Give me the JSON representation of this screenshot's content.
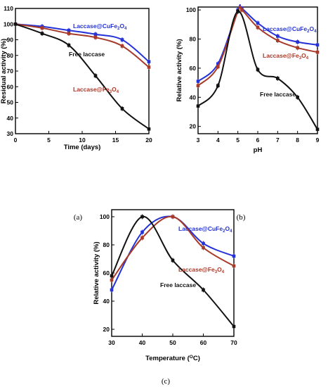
{
  "figure": {
    "panels": [
      "(a)",
      "(b)",
      "(c)"
    ]
  },
  "colors": {
    "free": "#111111",
    "fe3o4": "#a83a2a",
    "cufe2o4": "#2432d8"
  },
  "chart_data": [
    {
      "type": "line",
      "panel": "(a)",
      "xlabel": "Time (days)",
      "ylabel": "Residual activity (%)",
      "xlim": [
        0,
        20
      ],
      "ylim": [
        30,
        110
      ],
      "xticks": [
        0,
        5,
        10,
        15,
        20
      ],
      "yticks": [
        30,
        40,
        50,
        60,
        70,
        80,
        90,
        100,
        110
      ],
      "grid": false,
      "series": [
        {
          "name": "Laccase@CuFe2O4",
          "color_key": "cufe2o4",
          "x": [
            0,
            4,
            8,
            12,
            16,
            20
          ],
          "y": [
            100,
            98.5,
            96,
            93.5,
            90,
            76
          ]
        },
        {
          "name": "Laccase@Fe3O4",
          "color_key": "fe3o4",
          "x": [
            0,
            4,
            8,
            12,
            16,
            20
          ],
          "y": [
            100,
            97.5,
            94,
            91.5,
            86,
            72.5
          ]
        },
        {
          "name": "Free laccase",
          "color_key": "free",
          "x": [
            0,
            4,
            8,
            12,
            16,
            20
          ],
          "y": [
            100,
            94,
            86.5,
            67,
            46,
            33
          ]
        }
      ],
      "annotations": [
        {
          "text": "Laccase@CuFe",
          "sub": "2",
          "text2": "O",
          "sub2": "4",
          "series": "Laccase@CuFe2O4"
        },
        {
          "text": "Laccase@Fe",
          "sub": "3",
          "text2": "O",
          "sub2": "4",
          "series": "Laccase@Fe3O4"
        },
        {
          "text": "Free laccase",
          "series": "Free laccase"
        }
      ]
    },
    {
      "type": "line",
      "panel": "(b)",
      "xlabel": "pH",
      "ylabel": "Relative activity (%)",
      "xlim": [
        3,
        9
      ],
      "ylim": [
        15,
        102
      ],
      "xticks": [
        3,
        4,
        5,
        6,
        7,
        8,
        9
      ],
      "yticks": [
        20,
        40,
        60,
        80,
        100
      ],
      "grid": false,
      "series": [
        {
          "name": "Laccase@CuFe2O4",
          "color_key": "cufe2o4",
          "x": [
            3,
            4,
            5,
            5.2,
            6,
            7,
            8,
            9
          ],
          "y": [
            51,
            63,
            100,
            101,
            91,
            82,
            78,
            76
          ]
        },
        {
          "name": "Laccase@Fe3O4",
          "color_key": "fe3o4",
          "x": [
            3,
            4,
            5,
            5.2,
            6,
            7,
            8,
            9
          ],
          "y": [
            48,
            61,
            99,
            100,
            88,
            79,
            74,
            71
          ]
        },
        {
          "name": "Free laccase",
          "color_key": "free",
          "x": [
            3,
            4,
            5,
            6,
            7,
            8,
            9
          ],
          "y": [
            34,
            48,
            99,
            59,
            53,
            40,
            18
          ]
        }
      ],
      "annotations": [
        {
          "text": "Laccase@CuFe",
          "sub": "2",
          "text2": "O",
          "sub2": "4",
          "series": "Laccase@CuFe2O4"
        },
        {
          "text": "Laccase@Fe",
          "sub": "3",
          "text2": "O",
          "sub2": "4",
          "series": "Laccase@Fe3O4"
        },
        {
          "text": "Free laccase",
          "series": "Free laccase"
        }
      ]
    },
    {
      "type": "line",
      "panel": "(c)",
      "xlabel": "Temperature (",
      "xlabel_sup": "O",
      "xlabel_end": "C)",
      "ylabel": "Relative activity (%)",
      "xlim": [
        30,
        70
      ],
      "ylim": [
        15,
        105
      ],
      "xticks": [
        30,
        40,
        50,
        60,
        70
      ],
      "yticks": [
        20,
        40,
        60,
        80,
        100
      ],
      "grid": false,
      "series": [
        {
          "name": "Laccase@CuFe2O4",
          "color_key": "cufe2o4",
          "x": [
            30,
            40,
            50,
            60,
            70
          ],
          "y": [
            48,
            89,
            100,
            81,
            72
          ]
        },
        {
          "name": "Laccase@Fe3O4",
          "color_key": "fe3o4",
          "x": [
            30,
            40,
            50,
            60,
            70
          ],
          "y": [
            55,
            85,
            100,
            78,
            65
          ]
        },
        {
          "name": "Free laccase",
          "color_key": "free",
          "x": [
            30,
            40,
            50,
            60,
            70
          ],
          "y": [
            58,
            100,
            69,
            48,
            22
          ]
        }
      ],
      "annotations": [
        {
          "text": "Laccase@CuFe",
          "sub": "2",
          "text2": "O",
          "sub2": "4",
          "series": "Laccase@CuFe2O4"
        },
        {
          "text": "Laccase@Fe",
          "sub": "3",
          "text2": "O",
          "sub2": "4",
          "series": "Laccase@Fe3O4"
        },
        {
          "text": "Free laccase",
          "series": "Free laccase"
        }
      ]
    }
  ]
}
